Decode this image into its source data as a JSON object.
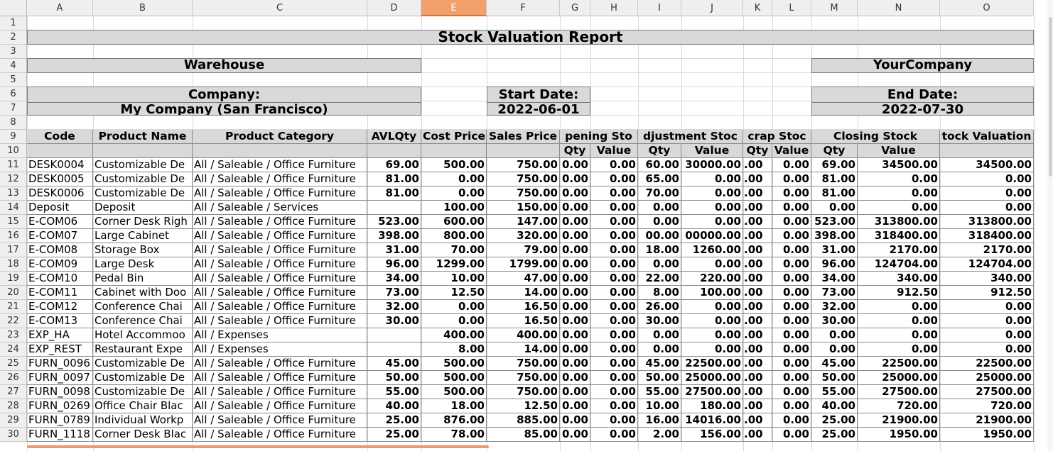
{
  "columns": [
    "A",
    "B",
    "C",
    "D",
    "E",
    "F",
    "G",
    "H",
    "I",
    "J",
    "K",
    "L",
    "M",
    "N",
    "O"
  ],
  "selected_column": "E",
  "row_numbers": [
    "1",
    "2",
    "3",
    "4",
    "5",
    "6",
    "7",
    "8",
    "9",
    "10",
    "11",
    "12",
    "13",
    "14",
    "15",
    "16",
    "17",
    "18",
    "19",
    "20",
    "21",
    "22",
    "23",
    "24",
    "25",
    "26",
    "27",
    "28",
    "29",
    "30"
  ],
  "report": {
    "title": "Stock Valuation Report",
    "warehouse_label": "Warehouse",
    "company_name_band": "YourCompany",
    "company_label": "Company:",
    "company_value": "My Company (San Francisco)",
    "start_label": "Start Date:",
    "start_value": "2022-06-01",
    "end_label": "End Date:",
    "end_value": "2022-07-30"
  },
  "table_headers": {
    "code": "Code",
    "product_name": "Product Name",
    "product_category": "Product Category",
    "avl_qty": "AVLQty",
    "cost_price": "Cost Price",
    "sales_price": "Sales Price",
    "opening_stock": "pening Sto",
    "adjustment_stock": "djustment Stoc",
    "scrap_stock": "crap Stoc",
    "closing_stock": "Closing Stock",
    "stock_valuation": "tock Valuation",
    "qty": "Qty",
    "value": "Value"
  },
  "rows": [
    [
      "DESK0004",
      "Customizable De",
      "All / Saleable / Office Furniture",
      "69.00",
      "500.00",
      "750.00",
      "0.00",
      "0.00",
      "60.00",
      "30000.00",
      ".00",
      "0.00",
      "69.00",
      "34500.00",
      "34500.00"
    ],
    [
      "DESK0005",
      "Customizable De",
      "All / Saleable / Office Furniture",
      "81.00",
      "0.00",
      "750.00",
      "0.00",
      "0.00",
      "65.00",
      "0.00",
      ".00",
      "0.00",
      "81.00",
      "0.00",
      "0.00"
    ],
    [
      "DESK0006",
      "Customizable De",
      "All / Saleable / Office Furniture",
      "81.00",
      "0.00",
      "750.00",
      "0.00",
      "0.00",
      "70.00",
      "0.00",
      ".00",
      "0.00",
      "81.00",
      "0.00",
      "0.00"
    ],
    [
      "Deposit",
      "Deposit",
      "All / Saleable / Services",
      "",
      "100.00",
      "150.00",
      "0.00",
      "0.00",
      "0.00",
      "0.00",
      ".00",
      "0.00",
      "0.00",
      "0.00",
      "0.00"
    ],
    [
      "E-COM06",
      "Corner Desk Righ",
      "All / Saleable / Office Furniture",
      "523.00",
      "600.00",
      "147.00",
      "0.00",
      "0.00",
      "0.00",
      "0.00",
      ".00",
      "0.00",
      "523.00",
      "313800.00",
      "313800.00"
    ],
    [
      "E-COM07",
      "Large Cabinet",
      "All / Saleable / Office Furniture",
      "398.00",
      "800.00",
      "320.00",
      "0.00",
      "0.00",
      "00.00",
      "00000.00",
      ".00",
      "0.00",
      "398.00",
      "318400.00",
      "318400.00"
    ],
    [
      "E-COM08",
      "Storage Box",
      "All / Saleable / Office Furniture",
      "31.00",
      "70.00",
      "79.00",
      "0.00",
      "0.00",
      "18.00",
      "1260.00",
      ".00",
      "0.00",
      "31.00",
      "2170.00",
      "2170.00"
    ],
    [
      "E-COM09",
      "Large Desk",
      "All / Saleable / Office Furniture",
      "96.00",
      "1299.00",
      "1799.00",
      "0.00",
      "0.00",
      "0.00",
      "0.00",
      ".00",
      "0.00",
      "96.00",
      "124704.00",
      "124704.00"
    ],
    [
      "E-COM10",
      "Pedal Bin",
      "All / Saleable / Office Furniture",
      "34.00",
      "10.00",
      "47.00",
      "0.00",
      "0.00",
      "22.00",
      "220.00",
      ".00",
      "0.00",
      "34.00",
      "340.00",
      "340.00"
    ],
    [
      "E-COM11",
      "Cabinet with Doo",
      "All / Saleable / Office Furniture",
      "73.00",
      "12.50",
      "14.00",
      "0.00",
      "0.00",
      "8.00",
      "100.00",
      ".00",
      "0.00",
      "73.00",
      "912.50",
      "912.50"
    ],
    [
      "E-COM12",
      "Conference Chai",
      "All / Saleable / Office Furniture",
      "32.00",
      "0.00",
      "16.50",
      "0.00",
      "0.00",
      "26.00",
      "0.00",
      ".00",
      "0.00",
      "32.00",
      "0.00",
      "0.00"
    ],
    [
      "E-COM13",
      "Conference Chai",
      "All / Saleable / Office Furniture",
      "30.00",
      "0.00",
      "16.50",
      "0.00",
      "0.00",
      "30.00",
      "0.00",
      ".00",
      "0.00",
      "30.00",
      "0.00",
      "0.00"
    ],
    [
      "EXP_HA",
      "Hotel Accommoo",
      "All / Expenses",
      "",
      "400.00",
      "400.00",
      "0.00",
      "0.00",
      "0.00",
      "0.00",
      ".00",
      "0.00",
      "0.00",
      "0.00",
      "0.00"
    ],
    [
      "EXP_REST",
      "Restaurant Expe",
      "All / Expenses",
      "",
      "8.00",
      "14.00",
      "0.00",
      "0.00",
      "0.00",
      "0.00",
      ".00",
      "0.00",
      "0.00",
      "0.00",
      "0.00"
    ],
    [
      "FURN_0096",
      "Customizable De",
      "All / Saleable / Office Furniture",
      "45.00",
      "500.00",
      "750.00",
      "0.00",
      "0.00",
      "45.00",
      "22500.00",
      ".00",
      "0.00",
      "45.00",
      "22500.00",
      "22500.00"
    ],
    [
      "FURN_0097",
      "Customizable De",
      "All / Saleable / Office Furniture",
      "50.00",
      "500.00",
      "750.00",
      "0.00",
      "0.00",
      "50.00",
      "25000.00",
      ".00",
      "0.00",
      "50.00",
      "25000.00",
      "25000.00"
    ],
    [
      "FURN_0098",
      "Customizable De",
      "All / Saleable / Office Furniture",
      "55.00",
      "500.00",
      "750.00",
      "0.00",
      "0.00",
      "55.00",
      "27500.00",
      ".00",
      "0.00",
      "55.00",
      "27500.00",
      "27500.00"
    ],
    [
      "FURN_0269",
      "Office Chair Blac",
      "All / Saleable / Office Furniture",
      "40.00",
      "18.00",
      "12.50",
      "0.00",
      "0.00",
      "10.00",
      "180.00",
      ".00",
      "0.00",
      "40.00",
      "720.00",
      "720.00"
    ],
    [
      "FURN_0789",
      "Individual Workp",
      "All / Saleable / Office Furniture",
      "25.00",
      "876.00",
      "885.00",
      "0.00",
      "0.00",
      "16.00",
      "14016.00",
      ".00",
      "0.00",
      "25.00",
      "21900.00",
      "21900.00"
    ],
    [
      "FURN_1118",
      "Corner Desk Blac",
      "All / Saleable / Office Furniture",
      "25.00",
      "78.00",
      "85.00",
      "0.00",
      "0.00",
      "2.00",
      "156.00",
      ".00",
      "0.00",
      "25.00",
      "1950.00",
      "1950.00"
    ]
  ]
}
